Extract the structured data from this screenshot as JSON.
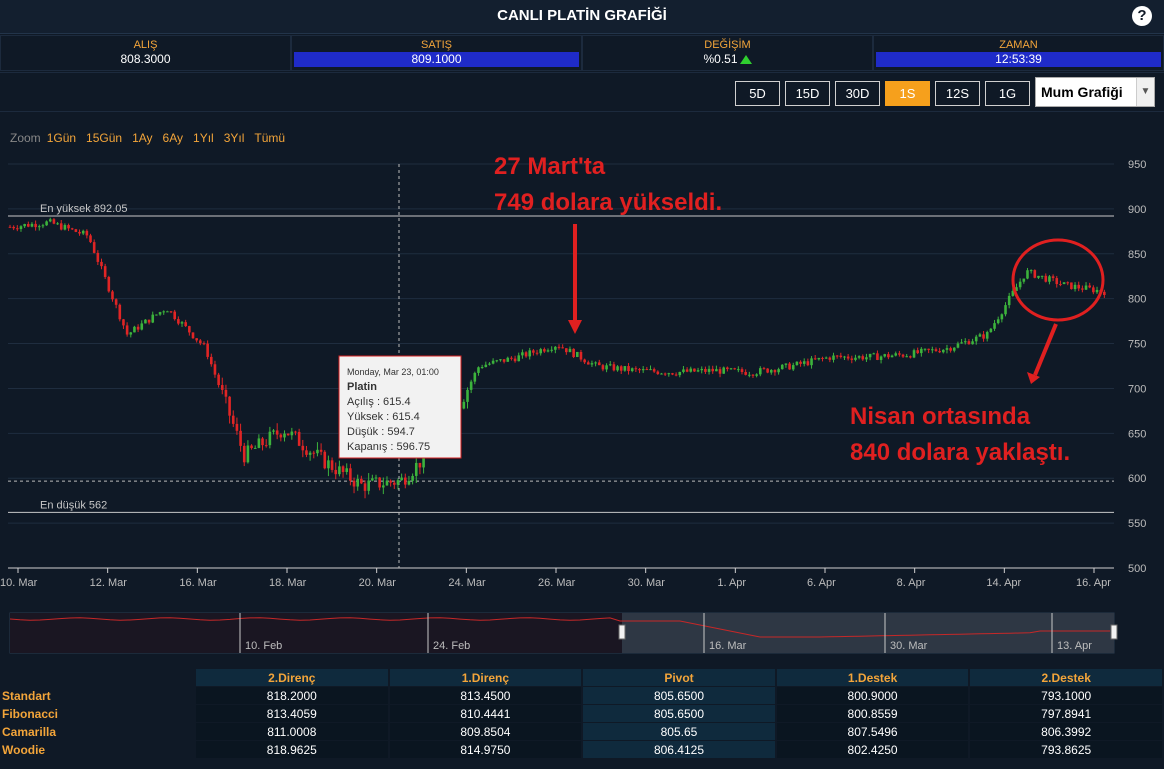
{
  "header": {
    "title": "CANLI PLATİN GRAFİĞİ",
    "help_label": "?"
  },
  "quotes": [
    {
      "label": "ALIŞ",
      "value": "808.3000"
    },
    {
      "label": "SATIŞ",
      "value": "809.1000"
    },
    {
      "label": "DEĞİŞİM",
      "value": "%0.51"
    },
    {
      "label": "ZAMAN",
      "value": "12:53:39"
    }
  ],
  "ranges": [
    "5D",
    "15D",
    "30D",
    "1S",
    "12S",
    "1G"
  ],
  "active_range": "1S",
  "chart_type_select": {
    "value": "Mum Grafiği"
  },
  "zoom": {
    "label": "Zoom",
    "buttons": [
      "1Gün",
      "15Gün",
      "1Ay",
      "6Ay",
      "1Yıl",
      "3Yıl",
      "Tümü"
    ]
  },
  "annotations": {
    "top_line1": "27 Mart'ta",
    "top_line2": "749 dolara yükseldi.",
    "bottom_line1": "Nisan ortasında",
    "bottom_line2": "840 dolara yaklaştı."
  },
  "tooltip": {
    "date": "Monday, Mar 23, 01:00",
    "name": "Platin",
    "open": "Açılış : 615.4",
    "high": "Yüksek : 615.4",
    "low": "Düşük : 594.7",
    "close": "Kapanış : 596.75"
  },
  "colors": {
    "up": "#3cb33c",
    "down": "#e02525",
    "accent": "#f6a01c",
    "annotation": "#e02020",
    "navigator_line": "#c62828"
  },
  "chart_data": {
    "type": "candlestick",
    "title": "",
    "ylabel": "",
    "ylim": [
      500,
      950
    ],
    "yticks": [
      500,
      550,
      600,
      650,
      700,
      750,
      800,
      850,
      900,
      950
    ],
    "x_ticks": [
      "10. Mar",
      "12. Mar",
      "16. Mar",
      "18. Mar",
      "20. Mar",
      "24. Mar",
      "26. Mar",
      "30. Mar",
      "1. Apr",
      "6. Apr",
      "8. Apr",
      "14. Apr",
      "16. Apr"
    ],
    "reference_lines": [
      {
        "label": "En yüksek 892.05",
        "value": 892.05
      },
      {
        "label": "En düşük 562",
        "value": 562
      }
    ],
    "crosshair_y": 596.75,
    "series": [
      {
        "x": "10. Mar",
        "close": 880
      },
      {
        "x": "11. Mar",
        "close": 885
      },
      {
        "x": "12. Mar",
        "close": 870
      },
      {
        "x": "13. Mar",
        "close": 760
      },
      {
        "x": "16. Mar",
        "close": 790
      },
      {
        "x": "17. Mar",
        "close": 745
      },
      {
        "x": "17. Mar",
        "close": 625
      },
      {
        "x": "18. Mar",
        "close": 655
      },
      {
        "x": "19. Mar",
        "close": 620
      },
      {
        "x": "20. Mar",
        "close": 592
      },
      {
        "x": "23. Mar",
        "close": 597
      },
      {
        "x": "24. Mar",
        "close": 640
      },
      {
        "x": "25. Mar",
        "close": 725
      },
      {
        "x": "26. Mar",
        "close": 735
      },
      {
        "x": "27. Mar",
        "close": 749
      },
      {
        "x": "30. Mar",
        "close": 725
      },
      {
        "x": "31. Mar",
        "close": 720
      },
      {
        "x": "1. Apr",
        "close": 718
      },
      {
        "x": "2. Apr",
        "close": 720
      },
      {
        "x": "3. Apr",
        "close": 718
      },
      {
        "x": "6. Apr",
        "close": 725
      },
      {
        "x": "7. Apr",
        "close": 735
      },
      {
        "x": "8. Apr",
        "close": 735
      },
      {
        "x": "9. Apr",
        "close": 738
      },
      {
        "x": "10. Apr",
        "close": 745
      },
      {
        "x": "13. Apr",
        "close": 760
      },
      {
        "x": "14. Apr",
        "close": 830
      },
      {
        "x": "15. Apr",
        "close": 815
      },
      {
        "x": "16. Apr",
        "close": 808
      }
    ]
  },
  "navigator": {
    "ticks": [
      "10. Feb",
      "24. Feb",
      "16. Mar",
      "30. Mar",
      "13. Apr"
    ]
  },
  "pivot_table": {
    "headers": [
      "2.Direnç",
      "1.Direnç",
      "Pivot",
      "1.Destek",
      "2.Destek"
    ],
    "rows": [
      {
        "name": "Standart",
        "values": [
          "818.2000",
          "813.4500",
          "805.6500",
          "800.9000",
          "793.1000"
        ]
      },
      {
        "name": "Fibonacci",
        "values": [
          "813.4059",
          "810.4441",
          "805.6500",
          "800.8559",
          "797.8941"
        ]
      },
      {
        "name": "Camarilla",
        "values": [
          "811.0008",
          "809.8504",
          "805.65",
          "807.5496",
          "806.3992"
        ]
      },
      {
        "name": "Woodie",
        "values": [
          "818.9625",
          "814.9750",
          "806.4125",
          "802.4250",
          "793.8625"
        ]
      }
    ]
  }
}
